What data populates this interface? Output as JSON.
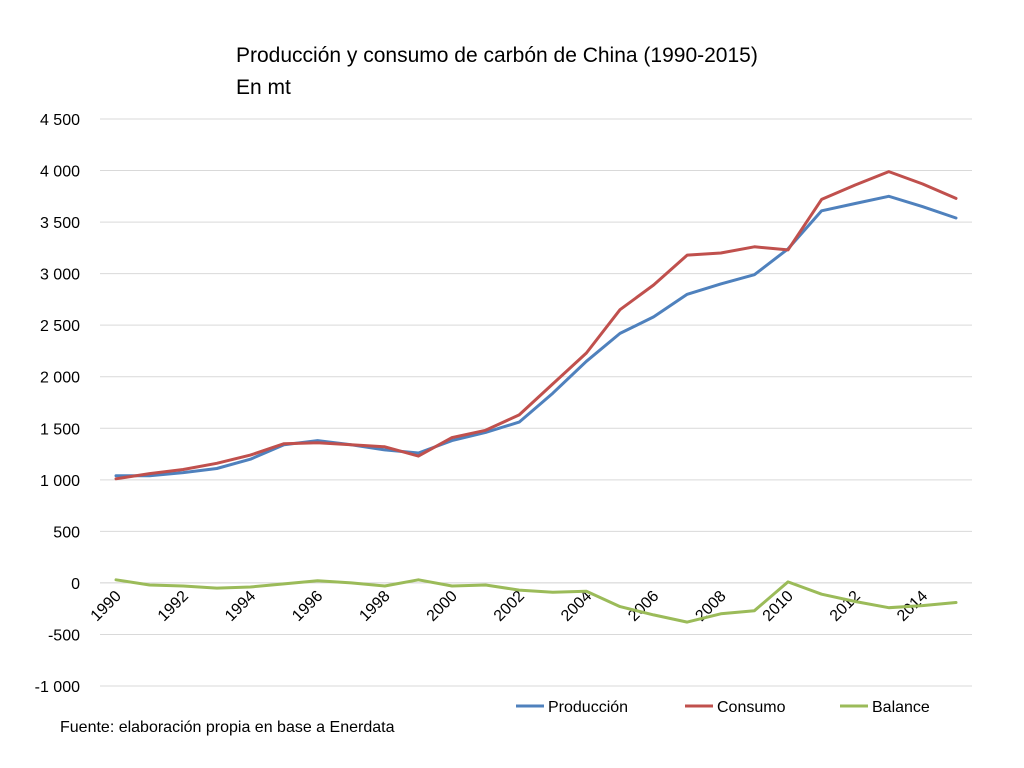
{
  "chart_data": {
    "type": "line",
    "title": "Producción y consumo de carbón de China (1990-2015)",
    "subtitle": "En mt",
    "ylim": [
      -1000,
      4500
    ],
    "ytick_step": 500,
    "yticks": [
      "4 500",
      "4 000",
      "3 500",
      "3 000",
      "2 500",
      "2 000",
      "1 500",
      "1 000",
      "500",
      "0",
      "-500",
      "-1 000"
    ],
    "x": [
      1990,
      1991,
      1992,
      1993,
      1994,
      1995,
      1996,
      1997,
      1998,
      1999,
      2000,
      2001,
      2002,
      2003,
      2004,
      2005,
      2006,
      2007,
      2008,
      2009,
      2010,
      2011,
      2012,
      2013,
      2014,
      2015
    ],
    "xtick_labels": [
      "1990",
      "1992",
      "1994",
      "1996",
      "1998",
      "2000",
      "2002",
      "2004",
      "2006",
      "2008",
      "2010",
      "2012",
      "2014"
    ],
    "grid": true,
    "legend_position": "bottom-right",
    "series": [
      {
        "name": "Producción",
        "color": "#4F81BD",
        "values": [
          1040,
          1040,
          1070,
          1110,
          1200,
          1340,
          1380,
          1340,
          1290,
          1260,
          1380,
          1460,
          1560,
          1840,
          2150,
          2420,
          2580,
          2800,
          2900,
          2990,
          3240,
          3610,
          3680,
          3750,
          3650,
          3540
        ]
      },
      {
        "name": "Consumo",
        "color": "#C0504D",
        "values": [
          1010,
          1060,
          1100,
          1160,
          1240,
          1350,
          1360,
          1340,
          1320,
          1230,
          1410,
          1480,
          1630,
          1930,
          2230,
          2650,
          2890,
          3180,
          3200,
          3260,
          3230,
          3720,
          3860,
          3990,
          3870,
          3730
        ]
      },
      {
        "name": "Balance",
        "color": "#9BBB59",
        "values": [
          30,
          -20,
          -30,
          -50,
          -40,
          -10,
          20,
          0,
          -30,
          30,
          -30,
          -20,
          -70,
          -90,
          -80,
          -230,
          -310,
          -380,
          -300,
          -270,
          10,
          -110,
          -180,
          -240,
          -220,
          -190
        ]
      }
    ]
  },
  "footer": {
    "source": "Fuente: elaboración propia en base a Enerdata"
  }
}
